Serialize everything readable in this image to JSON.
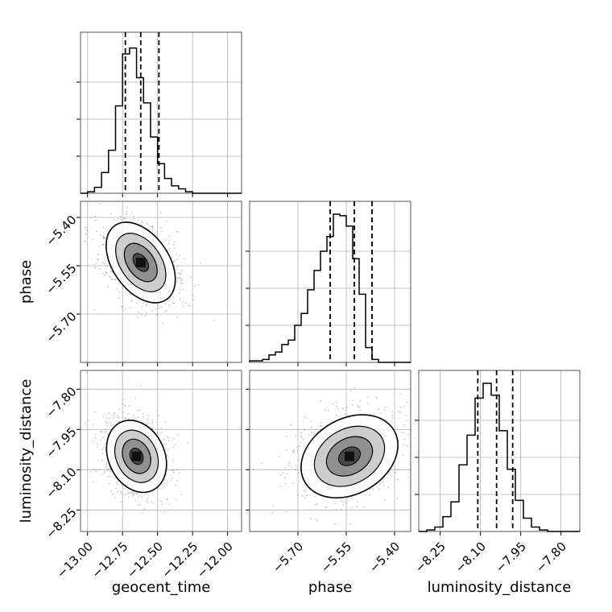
{
  "chart_data": {
    "type": "corner",
    "parameters": [
      "geocent_time",
      "phase",
      "luminosity_distance"
    ],
    "ranges": {
      "geocent_time": [
        -13.05,
        -11.9
      ],
      "phase": [
        -5.85,
        -5.35
      ],
      "luminosity_distance": [
        -8.33,
        -7.73
      ]
    },
    "ticks": {
      "geocent_time": [
        "−13.00",
        "−12.75",
        "−12.50",
        "−12.25",
        "−12.00"
      ],
      "phase": [
        "−5.70",
        "−5.55",
        "−5.40"
      ],
      "luminosity_distance": [
        "−8.25",
        "−8.10",
        "−7.95",
        "−7.80"
      ]
    },
    "tick_values": {
      "geocent_time": [
        -13.0,
        -12.75,
        -12.5,
        -12.25,
        -12.0
      ],
      "phase": [
        -5.7,
        -5.55,
        -5.4
      ],
      "luminosity_distance": [
        -8.25,
        -8.1,
        -7.95,
        -7.8
      ]
    },
    "quantiles": {
      "geocent_time": [
        -12.73,
        -12.62,
        -12.49
      ],
      "phase": [
        -5.6,
        -5.525,
        -5.47
      ],
      "luminosity_distance": [
        -8.11,
        -8.04,
        -7.98
      ]
    },
    "histograms": {
      "geocent_time": {
        "edges": [
          -13.05,
          -13.0,
          -12.95,
          -12.9,
          -12.85,
          -12.8,
          -12.75,
          -12.7,
          -12.65,
          -12.6,
          -12.55,
          -12.5,
          -12.45,
          -12.4,
          -12.35,
          -12.3,
          -12.25,
          -12.2,
          -12.15,
          -12.1,
          -12.05,
          -12.0,
          -11.95,
          -11.9
        ],
        "counts": [
          0,
          0.01,
          0.04,
          0.14,
          0.29,
          0.59,
          0.94,
          0.98,
          0.78,
          0.61,
          0.38,
          0.2,
          0.1,
          0.05,
          0.03,
          0.01,
          0,
          0,
          0,
          0,
          0,
          0,
          0
        ]
      },
      "phase": {
        "edges": [
          -5.85,
          -5.83,
          -5.81,
          -5.79,
          -5.77,
          -5.75,
          -5.73,
          -5.71,
          -5.69,
          -5.67,
          -5.65,
          -5.63,
          -5.61,
          -5.59,
          -5.57,
          -5.55,
          -5.53,
          -5.51,
          -5.49,
          -5.47,
          -5.45,
          -5.43,
          -5.41,
          -5.39,
          -5.37,
          -5.35
        ],
        "counts": [
          0.01,
          0.01,
          0.02,
          0.05,
          0.07,
          0.12,
          0.15,
          0.25,
          0.33,
          0.49,
          0.62,
          0.75,
          0.85,
          1.0,
          0.99,
          0.92,
          0.7,
          0.46,
          0.1,
          0.02,
          0,
          0,
          0,
          0,
          0
        ]
      },
      "luminosity_distance": {
        "edges": [
          -8.33,
          -8.3,
          -8.27,
          -8.24,
          -8.21,
          -8.18,
          -8.15,
          -8.12,
          -8.09,
          -8.06,
          -8.03,
          -8.0,
          -7.97,
          -7.94,
          -7.91,
          -7.88,
          -7.85,
          -7.82,
          -7.79,
          -7.76,
          -7.73
        ],
        "counts": [
          0,
          0.01,
          0.03,
          0.1,
          0.2,
          0.45,
          0.65,
          0.9,
          1.0,
          0.92,
          0.68,
          0.42,
          0.21,
          0.09,
          0.03,
          0.01,
          0,
          0,
          0,
          0
        ]
      }
    },
    "joint_peaks": [
      {
        "row": "phase",
        "col": "geocent_time",
        "x": -12.62,
        "y": -5.54,
        "sx": 0.1,
        "sy": 0.07,
        "tilt_deg": 35
      },
      {
        "row": "luminosity_distance",
        "col": "geocent_time",
        "x": -12.65,
        "y": -8.05,
        "sx": 0.1,
        "sy": 0.07,
        "tilt_deg": 25
      },
      {
        "row": "luminosity_distance",
        "col": "phase",
        "x": -5.54,
        "y": -8.05,
        "sx": 0.08,
        "sy": 0.07,
        "tilt_deg": 30
      }
    ],
    "grid": true
  }
}
